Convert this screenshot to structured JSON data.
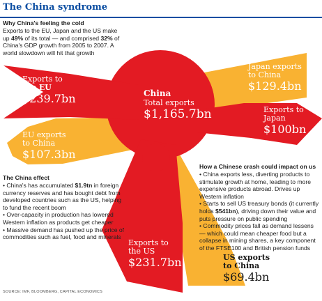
{
  "header": {
    "title": "The China syndrome"
  },
  "intro": {
    "heading": "Why China's feeling the cold",
    "parts": [
      "Exports to the EU, Japan and the US make up ",
      "49%",
      " of its total — and comprised ",
      "32%",
      " of China's GDP growth from 2005 to 2007. A world slowdown will hit that growth"
    ]
  },
  "hub": {
    "name": "China",
    "sub": "Total exports",
    "value": "$1,165.7bn"
  },
  "flows": {
    "exports_to_eu": {
      "line1": "Exports to",
      "line2": "the EU",
      "value": "$239.7bn"
    },
    "eu_exports": {
      "line1": "EU exports",
      "line2": "to China",
      "value": "$107.3bn"
    },
    "japan_exports": {
      "line1": "Japan exports",
      "line2": "to China",
      "value": "$129.4bn"
    },
    "exports_to_japan": {
      "line1": "Exports to",
      "line2": "Japan",
      "value": "$100bn"
    },
    "exports_to_us": {
      "line1": "Exports to",
      "line2": "the US",
      "value": "$231.7bn"
    },
    "us_exports": {
      "line1": "US exports",
      "line2": "to China",
      "value": "$69.4bn"
    }
  },
  "effect": {
    "heading": "The China effect",
    "b1": [
      "China's has accumulated ",
      "$1.9tn",
      " in foreign currency reserves and has bought debt from developed countries such as the US, helping to fund the recent boom"
    ],
    "b2": "Over-capacity in production has lowered Western inflation as products get cheaper",
    "b3": "Massive demand has pushed up the price of commodities such as fuel, food and minerals"
  },
  "crash": {
    "heading": "How a Chinese crash could impact on us",
    "b1": "China exports less, diverting products to stimulate growth at home, leading to more expensive products abroad. Drives up Western inflation",
    "b2": [
      "Starts to sell US treasury bonds (it currently holds ",
      "$541bn",
      "), driving down their value and puts pressure on public spending"
    ],
    "b3": "Commodity prices fall as demand lessens — which could mean cheaper food but a collapse in mining shares, a key component of the FTSE100 and British pension funds"
  },
  "source": "SOURCE: IMF, BLOOMBERG, CAPITAL ECONOMICS",
  "colors": {
    "red": "#e31b23",
    "yellow": "#f9b232",
    "title": "#0b4ea2"
  }
}
